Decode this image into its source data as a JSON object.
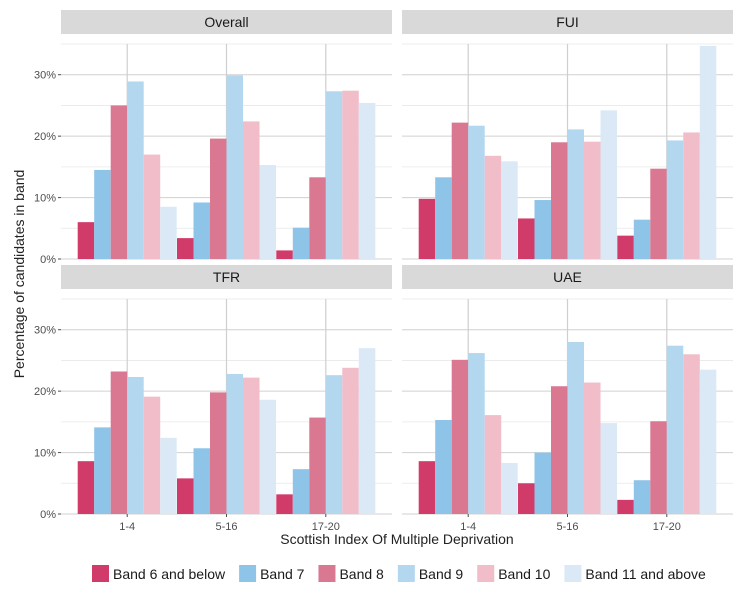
{
  "chart_data": {
    "type": "bar",
    "xlabel": "Scottish Index Of Multiple Deprivation",
    "ylabel": "Percentage of candidates in band",
    "ylim": [
      0,
      35
    ],
    "yticks": [
      0,
      10,
      20,
      30
    ],
    "ytick_labels": [
      "0%",
      "10%",
      "20%",
      "30%"
    ],
    "categories": [
      "1-4",
      "5-16",
      "17-20"
    ],
    "grid": true,
    "legend_position": "bottom",
    "series_names": [
      "Band 6 and below",
      "Band 7",
      "Band 8",
      "Band 9",
      "Band 10",
      "Band 11 and above"
    ],
    "series_colors": [
      "#d13b6a",
      "#8ec4e8",
      "#d97890",
      "#b4d7f0",
      "#f0bdc8",
      "#dbe9f6"
    ],
    "panels": [
      {
        "title": "Overall",
        "series": [
          {
            "name": "Band 6 and below",
            "values": [
              6.0,
              3.4,
              1.4
            ]
          },
          {
            "name": "Band 7",
            "values": [
              14.5,
              9.2,
              5.1
            ]
          },
          {
            "name": "Band 8",
            "values": [
              25.0,
              19.6,
              13.3
            ]
          },
          {
            "name": "Band 9",
            "values": [
              28.9,
              29.9,
              27.3
            ]
          },
          {
            "name": "Band 10",
            "values": [
              17.0,
              22.4,
              27.4
            ]
          },
          {
            "name": "Band 11 and above",
            "values": [
              8.5,
              15.3,
              25.4
            ]
          }
        ]
      },
      {
        "title": "FUI",
        "series": [
          {
            "name": "Band 6 and below",
            "values": [
              9.8,
              6.6,
              3.8
            ]
          },
          {
            "name": "Band 7",
            "values": [
              13.3,
              9.6,
              6.4
            ]
          },
          {
            "name": "Band 8",
            "values": [
              22.2,
              19.0,
              14.7
            ]
          },
          {
            "name": "Band 9",
            "values": [
              21.7,
              21.1,
              19.3
            ]
          },
          {
            "name": "Band 10",
            "values": [
              16.8,
              19.1,
              20.6
            ]
          },
          {
            "name": "Band 11 and above",
            "values": [
              15.9,
              24.2,
              34.7
            ]
          }
        ]
      },
      {
        "title": "TFR",
        "series": [
          {
            "name": "Band 6 and below",
            "values": [
              8.6,
              5.8,
              3.2
            ]
          },
          {
            "name": "Band 7",
            "values": [
              14.1,
              10.7,
              7.3
            ]
          },
          {
            "name": "Band 8",
            "values": [
              23.2,
              19.8,
              15.7
            ]
          },
          {
            "name": "Band 9",
            "values": [
              22.3,
              22.8,
              22.6
            ]
          },
          {
            "name": "Band 10",
            "values": [
              19.1,
              22.2,
              23.8
            ]
          },
          {
            "name": "Band 11 and above",
            "values": [
              12.4,
              18.6,
              27.0
            ]
          }
        ]
      },
      {
        "title": "UAE",
        "series": [
          {
            "name": "Band 6 and below",
            "values": [
              8.6,
              5.0,
              2.3
            ]
          },
          {
            "name": "Band 7",
            "values": [
              15.3,
              10.0,
              5.5
            ]
          },
          {
            "name": "Band 8",
            "values": [
              25.1,
              20.8,
              15.1
            ]
          },
          {
            "name": "Band 9",
            "values": [
              26.2,
              28.0,
              27.4
            ]
          },
          {
            "name": "Band 10",
            "values": [
              16.1,
              21.4,
              26.0
            ]
          },
          {
            "name": "Band 11 and above",
            "values": [
              8.3,
              14.8,
              23.5
            ]
          }
        ]
      }
    ]
  }
}
